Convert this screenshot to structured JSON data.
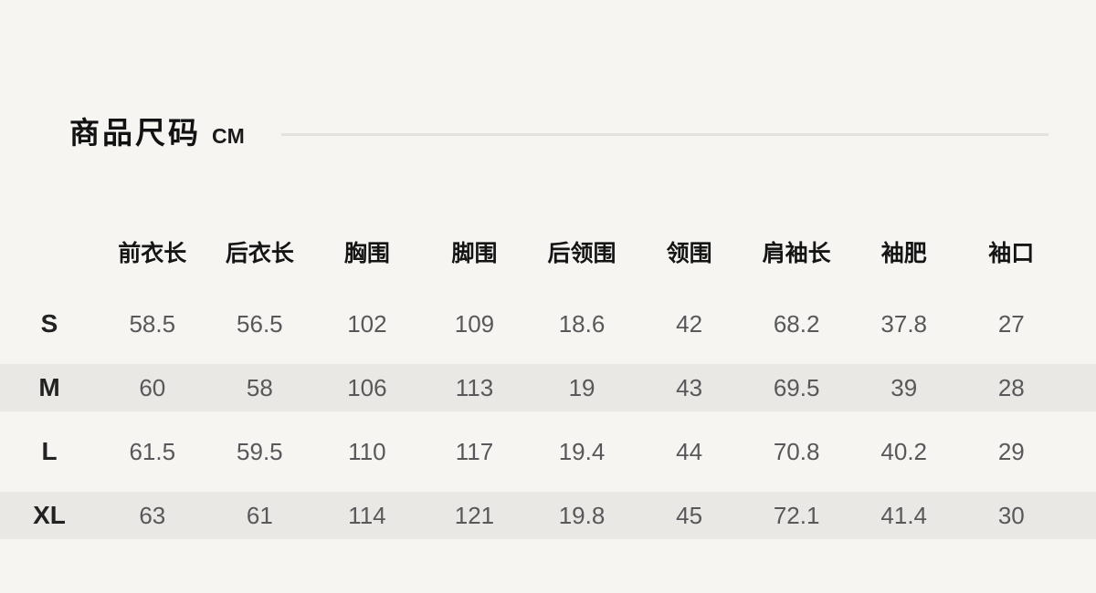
{
  "page": {
    "background_color": "#f6f5f2",
    "stripe_color": "#e9e8e5"
  },
  "header": {
    "title": "商品尺码",
    "unit": "CM"
  },
  "size_table": {
    "columns": [
      "前衣长",
      "后衣长",
      "胸围",
      "脚围",
      "后领围",
      "领围",
      "肩袖长",
      "袖肥",
      "袖口"
    ],
    "rows": [
      {
        "size": "S",
        "values": [
          "58.5",
          "56.5",
          "102",
          "109",
          "18.6",
          "42",
          "68.2",
          "37.8",
          "27"
        ]
      },
      {
        "size": "M",
        "values": [
          "60",
          "58",
          "106",
          "113",
          "19",
          "43",
          "69.5",
          "39",
          "28"
        ]
      },
      {
        "size": "L",
        "values": [
          "61.5",
          "59.5",
          "110",
          "117",
          "19.4",
          "44",
          "70.8",
          "40.2",
          "29"
        ]
      },
      {
        "size": "XL",
        "values": [
          "63",
          "61",
          "114",
          "121",
          "19.8",
          "45",
          "72.1",
          "41.4",
          "30"
        ]
      }
    ]
  }
}
